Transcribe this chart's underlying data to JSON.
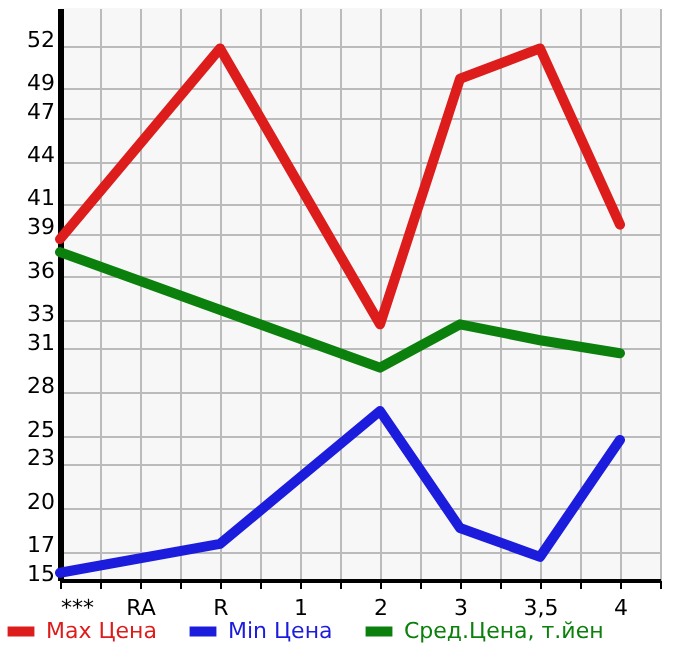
{
  "chart_data": {
    "type": "line",
    "categories": [
      "***",
      "RA",
      "R",
      "1",
      "2",
      "3",
      "3,5",
      "4"
    ],
    "series": [
      {
        "name": "Max Цена",
        "color": "#dd1c1c",
        "values": [
          38.6,
          null,
          51.8,
          null,
          32.7,
          49.7,
          51.8,
          39.6
        ]
      },
      {
        "name": "Min Цена",
        "color": "#1c1cdd",
        "values": [
          15.5,
          null,
          17.5,
          null,
          26.7,
          18.6,
          16.6,
          24.7
        ]
      },
      {
        "name": "Сред.Цена, т.йен",
        "color": "#0c800c",
        "values": [
          37.7,
          null,
          null,
          null,
          29.7,
          32.7,
          31.6,
          30.7
        ]
      }
    ],
    "ylim": [
      15,
      54.6
    ],
    "yticks": [
      15,
      17,
      20,
      23,
      25,
      28,
      31,
      33,
      36,
      39,
      41,
      44,
      47,
      49,
      52
    ],
    "grid": true,
    "legend": "bottom",
    "marker": "none",
    "line_style": "solid"
  }
}
